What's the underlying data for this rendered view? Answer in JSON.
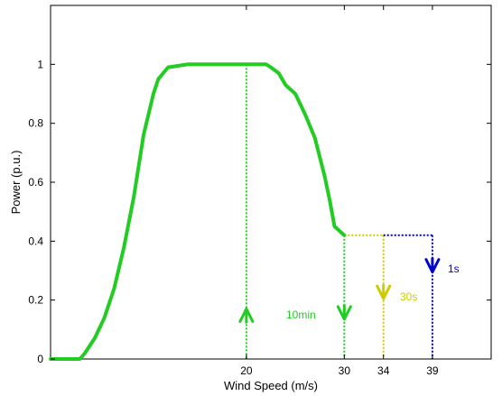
{
  "chart_data": {
    "type": "line",
    "xlabel": "Wind Speed (m/s)",
    "ylabel": "Power (p.u.)",
    "xlim": [
      0,
      45
    ],
    "ylim": [
      0,
      1.2
    ],
    "xticks": [
      20,
      30,
      34,
      39
    ],
    "yticks": [
      0,
      0.2,
      0.4,
      0.6,
      0.8,
      1
    ],
    "ytick_labels": [
      "0",
      "0.2",
      "0.4",
      "0.6",
      "0.8",
      "1"
    ],
    "grid": false,
    "colors": {
      "curve": "#22cc22",
      "tenmin": "#22cc22",
      "thirtys": "#cccc00",
      "ones": "#0000cc"
    },
    "series": [
      {
        "x": [
          0,
          3,
          3.5,
          4.5,
          5.5,
          6.5,
          7.5,
          8.5,
          9.5,
          10.5,
          11,
          12,
          13,
          14,
          15,
          16,
          17,
          18,
          19,
          20,
          21,
          22,
          22.5,
          23.3,
          24,
          25,
          26,
          27,
          28,
          28.5,
          29,
          30
        ],
        "y": [
          0,
          0,
          0.02,
          0.07,
          0.14,
          0.24,
          0.38,
          0.55,
          0.76,
          0.9,
          0.95,
          0.99,
          0.995,
          1,
          1,
          1,
          1,
          1,
          1,
          1,
          1,
          1,
          0.99,
          0.97,
          0.93,
          0.9,
          0.83,
          0.75,
          0.62,
          0.54,
          0.45,
          0.42
        ]
      }
    ],
    "annotations": [
      {
        "label": "10min",
        "x_from": 20,
        "x_to": 30,
        "y_level": 0.42,
        "direction_at_x20": "up",
        "direction_at_x30": "down"
      },
      {
        "label": "30s",
        "x_from": 30,
        "x_to": 34,
        "y_level": 0.42,
        "direction": "down"
      },
      {
        "label": "1s",
        "x_from": 34,
        "x_to": 39,
        "y_level": 0.42,
        "direction": "down"
      }
    ]
  }
}
